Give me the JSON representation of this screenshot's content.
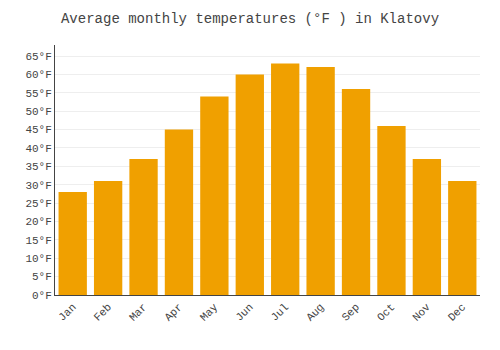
{
  "chart_data": {
    "type": "bar",
    "title": "Average monthly temperatures (°F ) in Klatovy",
    "categories": [
      "Jan",
      "Feb",
      "Mar",
      "Apr",
      "May",
      "Jun",
      "Jul",
      "Aug",
      "Sep",
      "Oct",
      "Nov",
      "Dec"
    ],
    "values": [
      28,
      31,
      37,
      45,
      54,
      60,
      63,
      62,
      56,
      46,
      37,
      31
    ],
    "color": "#F0A000",
    "ylim": [
      0,
      68
    ],
    "yticks": [
      {
        "value": 0,
        "label": "0°F"
      },
      {
        "value": 5,
        "label": "5°F"
      },
      {
        "value": 10,
        "label": "10°F"
      },
      {
        "value": 15,
        "label": "15°F"
      },
      {
        "value": 20,
        "label": "20°F"
      },
      {
        "value": 25,
        "label": "25°F"
      },
      {
        "value": 30,
        "label": "30°F"
      },
      {
        "value": 35,
        "label": "35°F"
      },
      {
        "value": 40,
        "label": "40°F"
      },
      {
        "value": 45,
        "label": "45°F"
      },
      {
        "value": 50,
        "label": "50°F"
      },
      {
        "value": 55,
        "label": "55°F"
      },
      {
        "value": 60,
        "label": "60°F"
      },
      {
        "value": 65,
        "label": "65°F"
      }
    ],
    "grid": true
  }
}
